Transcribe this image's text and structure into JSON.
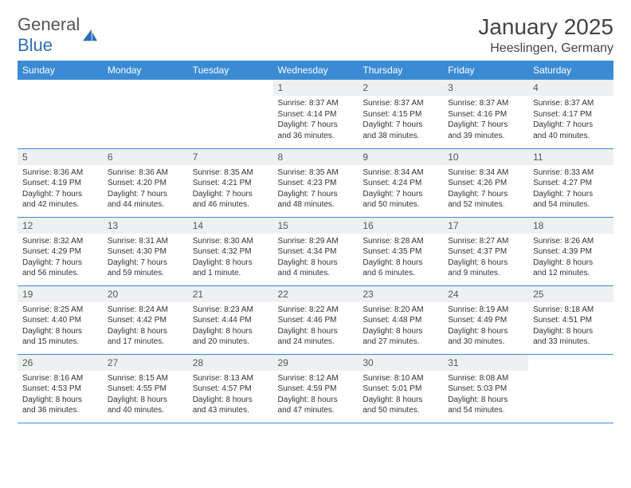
{
  "brand": {
    "text1": "General",
    "text2": "Blue"
  },
  "title": "January 2025",
  "location": "Heeslingen, Germany",
  "colors": {
    "header_bg": "#3b8bd4",
    "header_fg": "#ffffff",
    "daynum_bg": "#eef0f2",
    "rule": "#3b8bd4"
  },
  "weekdays": [
    "Sunday",
    "Monday",
    "Tuesday",
    "Wednesday",
    "Thursday",
    "Friday",
    "Saturday"
  ],
  "weeks": [
    [
      {
        "n": "",
        "lines": []
      },
      {
        "n": "",
        "lines": []
      },
      {
        "n": "",
        "lines": []
      },
      {
        "n": "1",
        "lines": [
          "Sunrise: 8:37 AM",
          "Sunset: 4:14 PM",
          "Daylight: 7 hours",
          "and 36 minutes."
        ]
      },
      {
        "n": "2",
        "lines": [
          "Sunrise: 8:37 AM",
          "Sunset: 4:15 PM",
          "Daylight: 7 hours",
          "and 38 minutes."
        ]
      },
      {
        "n": "3",
        "lines": [
          "Sunrise: 8:37 AM",
          "Sunset: 4:16 PM",
          "Daylight: 7 hours",
          "and 39 minutes."
        ]
      },
      {
        "n": "4",
        "lines": [
          "Sunrise: 8:37 AM",
          "Sunset: 4:17 PM",
          "Daylight: 7 hours",
          "and 40 minutes."
        ]
      }
    ],
    [
      {
        "n": "5",
        "lines": [
          "Sunrise: 8:36 AM",
          "Sunset: 4:19 PM",
          "Daylight: 7 hours",
          "and 42 minutes."
        ]
      },
      {
        "n": "6",
        "lines": [
          "Sunrise: 8:36 AM",
          "Sunset: 4:20 PM",
          "Daylight: 7 hours",
          "and 44 minutes."
        ]
      },
      {
        "n": "7",
        "lines": [
          "Sunrise: 8:35 AM",
          "Sunset: 4:21 PM",
          "Daylight: 7 hours",
          "and 46 minutes."
        ]
      },
      {
        "n": "8",
        "lines": [
          "Sunrise: 8:35 AM",
          "Sunset: 4:23 PM",
          "Daylight: 7 hours",
          "and 48 minutes."
        ]
      },
      {
        "n": "9",
        "lines": [
          "Sunrise: 8:34 AM",
          "Sunset: 4:24 PM",
          "Daylight: 7 hours",
          "and 50 minutes."
        ]
      },
      {
        "n": "10",
        "lines": [
          "Sunrise: 8:34 AM",
          "Sunset: 4:26 PM",
          "Daylight: 7 hours",
          "and 52 minutes."
        ]
      },
      {
        "n": "11",
        "lines": [
          "Sunrise: 8:33 AM",
          "Sunset: 4:27 PM",
          "Daylight: 7 hours",
          "and 54 minutes."
        ]
      }
    ],
    [
      {
        "n": "12",
        "lines": [
          "Sunrise: 8:32 AM",
          "Sunset: 4:29 PM",
          "Daylight: 7 hours",
          "and 56 minutes."
        ]
      },
      {
        "n": "13",
        "lines": [
          "Sunrise: 8:31 AM",
          "Sunset: 4:30 PM",
          "Daylight: 7 hours",
          "and 59 minutes."
        ]
      },
      {
        "n": "14",
        "lines": [
          "Sunrise: 8:30 AM",
          "Sunset: 4:32 PM",
          "Daylight: 8 hours",
          "and 1 minute."
        ]
      },
      {
        "n": "15",
        "lines": [
          "Sunrise: 8:29 AM",
          "Sunset: 4:34 PM",
          "Daylight: 8 hours",
          "and 4 minutes."
        ]
      },
      {
        "n": "16",
        "lines": [
          "Sunrise: 8:28 AM",
          "Sunset: 4:35 PM",
          "Daylight: 8 hours",
          "and 6 minutes."
        ]
      },
      {
        "n": "17",
        "lines": [
          "Sunrise: 8:27 AM",
          "Sunset: 4:37 PM",
          "Daylight: 8 hours",
          "and 9 minutes."
        ]
      },
      {
        "n": "18",
        "lines": [
          "Sunrise: 8:26 AM",
          "Sunset: 4:39 PM",
          "Daylight: 8 hours",
          "and 12 minutes."
        ]
      }
    ],
    [
      {
        "n": "19",
        "lines": [
          "Sunrise: 8:25 AM",
          "Sunset: 4:40 PM",
          "Daylight: 8 hours",
          "and 15 minutes."
        ]
      },
      {
        "n": "20",
        "lines": [
          "Sunrise: 8:24 AM",
          "Sunset: 4:42 PM",
          "Daylight: 8 hours",
          "and 17 minutes."
        ]
      },
      {
        "n": "21",
        "lines": [
          "Sunrise: 8:23 AM",
          "Sunset: 4:44 PM",
          "Daylight: 8 hours",
          "and 20 minutes."
        ]
      },
      {
        "n": "22",
        "lines": [
          "Sunrise: 8:22 AM",
          "Sunset: 4:46 PM",
          "Daylight: 8 hours",
          "and 24 minutes."
        ]
      },
      {
        "n": "23",
        "lines": [
          "Sunrise: 8:20 AM",
          "Sunset: 4:48 PM",
          "Daylight: 8 hours",
          "and 27 minutes."
        ]
      },
      {
        "n": "24",
        "lines": [
          "Sunrise: 8:19 AM",
          "Sunset: 4:49 PM",
          "Daylight: 8 hours",
          "and 30 minutes."
        ]
      },
      {
        "n": "25",
        "lines": [
          "Sunrise: 8:18 AM",
          "Sunset: 4:51 PM",
          "Daylight: 8 hours",
          "and 33 minutes."
        ]
      }
    ],
    [
      {
        "n": "26",
        "lines": [
          "Sunrise: 8:16 AM",
          "Sunset: 4:53 PM",
          "Daylight: 8 hours",
          "and 36 minutes."
        ]
      },
      {
        "n": "27",
        "lines": [
          "Sunrise: 8:15 AM",
          "Sunset: 4:55 PM",
          "Daylight: 8 hours",
          "and 40 minutes."
        ]
      },
      {
        "n": "28",
        "lines": [
          "Sunrise: 8:13 AM",
          "Sunset: 4:57 PM",
          "Daylight: 8 hours",
          "and 43 minutes."
        ]
      },
      {
        "n": "29",
        "lines": [
          "Sunrise: 8:12 AM",
          "Sunset: 4:59 PM",
          "Daylight: 8 hours",
          "and 47 minutes."
        ]
      },
      {
        "n": "30",
        "lines": [
          "Sunrise: 8:10 AM",
          "Sunset: 5:01 PM",
          "Daylight: 8 hours",
          "and 50 minutes."
        ]
      },
      {
        "n": "31",
        "lines": [
          "Sunrise: 8:08 AM",
          "Sunset: 5:03 PM",
          "Daylight: 8 hours",
          "and 54 minutes."
        ]
      },
      {
        "n": "",
        "lines": []
      }
    ]
  ]
}
